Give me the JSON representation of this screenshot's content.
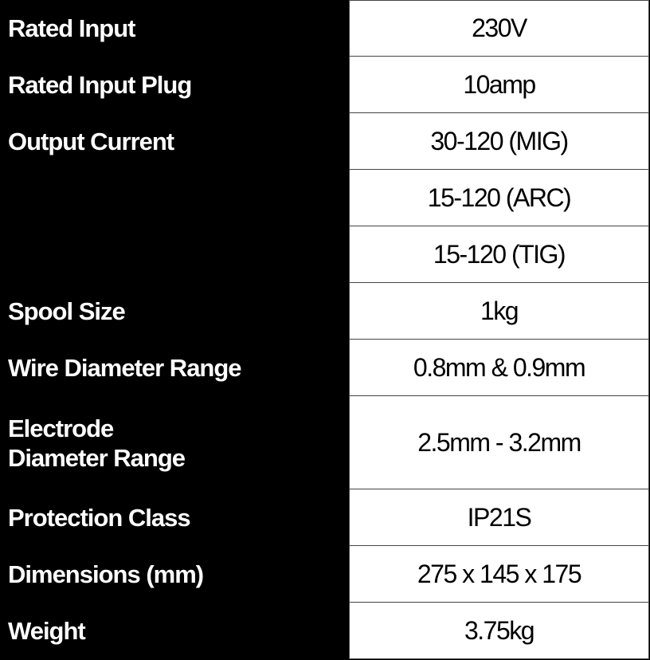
{
  "specs": [
    {
      "label": "Rated Input",
      "value": "230V"
    },
    {
      "label": "Rated Input Plug",
      "value": "10amp"
    },
    {
      "label": "Output Current",
      "value": "30-120 (MIG)"
    },
    {
      "label": "",
      "value": "15-120 (ARC)"
    },
    {
      "label": "",
      "value": "15-120 (TIG)"
    },
    {
      "label": "Spool Size",
      "value": "1kg"
    },
    {
      "label": "Wire Diameter Range",
      "value": "0.8mm & 0.9mm"
    },
    {
      "label": "Electrode Diameter Range",
      "label_line1": "Electrode",
      "label_line2": "Diameter Range",
      "value": "2.5mm - 3.2mm"
    },
    {
      "label": "Protection Class",
      "value": "IP21S"
    },
    {
      "label": "Dimensions (mm)",
      "value": "275 x 145 x 175"
    },
    {
      "label": "Weight",
      "value": "3.75kg"
    }
  ]
}
